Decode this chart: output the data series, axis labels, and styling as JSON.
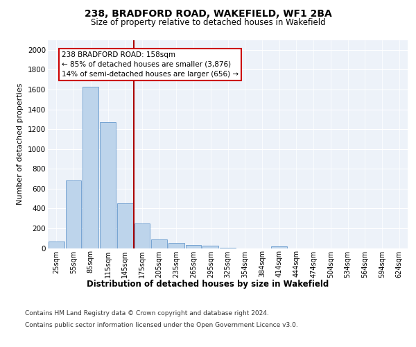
{
  "title": "238, BRADFORD ROAD, WAKEFIELD, WF1 2BA",
  "subtitle": "Size of property relative to detached houses in Wakefield",
  "xlabel": "Distribution of detached houses by size in Wakefield",
  "ylabel": "Number of detached properties",
  "categories": [
    "25sqm",
    "55sqm",
    "85sqm",
    "115sqm",
    "145sqm",
    "175sqm",
    "205sqm",
    "235sqm",
    "265sqm",
    "295sqm",
    "325sqm",
    "354sqm",
    "384sqm",
    "414sqm",
    "444sqm",
    "474sqm",
    "504sqm",
    "534sqm",
    "564sqm",
    "594sqm",
    "624sqm"
  ],
  "values": [
    65,
    680,
    1630,
    1270,
    450,
    250,
    90,
    50,
    30,
    25,
    5,
    0,
    0,
    20,
    0,
    0,
    0,
    0,
    0,
    0,
    0
  ],
  "bar_color": "#bdd4eb",
  "bar_edge_color": "#6699cc",
  "vline_x_index": 4.5,
  "vline_color": "#aa0000",
  "annotation_line1": "238 BRADFORD ROAD: 158sqm",
  "annotation_line2": "← 85% of detached houses are smaller (3,876)",
  "annotation_line3": "14% of semi-detached houses are larger (656) →",
  "annotation_box_edgecolor": "#cc0000",
  "ylim": [
    0,
    2100
  ],
  "yticks": [
    0,
    200,
    400,
    600,
    800,
    1000,
    1200,
    1400,
    1600,
    1800,
    2000
  ],
  "plot_bg_color": "#edf2f9",
  "grid_color": "#ffffff",
  "footer_line1": "Contains HM Land Registry data © Crown copyright and database right 2024.",
  "footer_line2": "Contains public sector information licensed under the Open Government Licence v3.0."
}
